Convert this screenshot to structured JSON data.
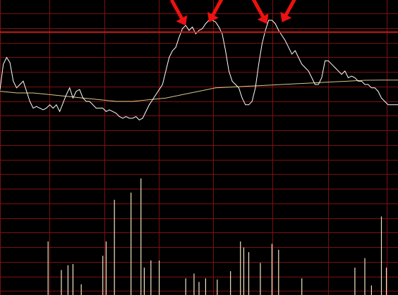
{
  "chart_data": {
    "type": "line",
    "title": "",
    "xlabel": "",
    "ylabel": "",
    "grid": true,
    "colors": {
      "background": "#000000",
      "grid": "#7a1010",
      "reference_line": "#cc1a1a",
      "price_line": "#ffffff",
      "average_line": "#d8c88a",
      "volume_bar": "#efe4c4",
      "arrow": "#ee1111"
    },
    "x_range": [
      0,
      240
    ],
    "price_ylim": [
      0,
      100
    ],
    "reference_level": 81,
    "series": [
      {
        "role": "price",
        "x": [
          0,
          2,
          4,
          6,
          8,
          10,
          12,
          14,
          16,
          18,
          20,
          22,
          24,
          26,
          28,
          30,
          32,
          34,
          36,
          38,
          40,
          42,
          44,
          46,
          48,
          50,
          52,
          54,
          56,
          58,
          60,
          62,
          64,
          66,
          68,
          70,
          72,
          74,
          76,
          78,
          80,
          82,
          84,
          86,
          88,
          90,
          92,
          94,
          96,
          98,
          100,
          102,
          104,
          106,
          108,
          110,
          112,
          114,
          116,
          118,
          120,
          122,
          124,
          126,
          128,
          130,
          132,
          134,
          136,
          138,
          140,
          142,
          144,
          146,
          148,
          150,
          152,
          154,
          156,
          158,
          160,
          162,
          164,
          166,
          168,
          170,
          172,
          174,
          176,
          178,
          180,
          182,
          184,
          186,
          188,
          190,
          192,
          194,
          196,
          198,
          200,
          202,
          204,
          206,
          208,
          210,
          212,
          214,
          216,
          218,
          220,
          222,
          224,
          226,
          228,
          230,
          232,
          234,
          236,
          238,
          240
        ],
        "values": [
          47,
          62,
          66,
          63,
          52,
          48,
          50,
          52,
          46,
          40,
          36,
          37,
          36,
          35,
          36,
          38,
          36,
          38,
          34,
          39,
          44,
          48,
          42,
          46,
          47,
          42,
          40,
          40,
          38,
          36,
          36,
          36,
          34,
          35,
          34,
          33,
          31,
          30,
          31,
          30,
          30,
          31,
          29,
          30,
          34,
          38,
          41,
          44,
          47,
          50,
          58,
          66,
          70,
          72,
          78,
          83,
          85,
          82,
          84,
          80,
          82,
          83,
          86,
          88,
          88,
          87,
          84,
          80,
          70,
          58,
          52,
          50,
          48,
          42,
          38,
          38,
          40,
          48,
          62,
          74,
          82,
          88,
          88,
          86,
          82,
          79,
          76,
          72,
          68,
          70,
          66,
          62,
          60,
          58,
          54,
          50,
          50,
          54,
          64,
          64,
          62,
          60,
          58,
          56,
          58,
          54,
          55,
          54,
          52,
          52,
          50,
          50,
          48,
          48,
          46,
          42,
          40,
          38,
          38,
          38,
          38
        ]
      },
      {
        "role": "average",
        "x": [
          0,
          10,
          20,
          30,
          40,
          50,
          60,
          70,
          80,
          90,
          100,
          110,
          120,
          130,
          140,
          150,
          160,
          170,
          180,
          190,
          200,
          210,
          220,
          230,
          240
        ],
        "values": [
          46,
          45,
          45,
          44,
          43,
          42,
          41,
          40,
          40,
          41,
          42,
          44,
          46,
          48,
          48.5,
          49,
          49.5,
          50,
          50.5,
          51,
          51.5,
          52,
          52.5,
          52.6,
          52.6
        ]
      }
    ],
    "volume": {
      "max": 100,
      "bars": [
        {
          "x": 29,
          "v": 45
        },
        {
          "x": 37,
          "v": 21
        },
        {
          "x": 41,
          "v": 25
        },
        {
          "x": 44,
          "v": 26
        },
        {
          "x": 49,
          "v": 9
        },
        {
          "x": 62,
          "v": 33
        },
        {
          "x": 64,
          "v": 45
        },
        {
          "x": 69,
          "v": 80
        },
        {
          "x": 79,
          "v": 86
        },
        {
          "x": 85,
          "v": 98
        },
        {
          "x": 87,
          "v": 23
        },
        {
          "x": 91,
          "v": 29
        },
        {
          "x": 96,
          "v": 29
        },
        {
          "x": 112,
          "v": 14
        },
        {
          "x": 117,
          "v": 18
        },
        {
          "x": 120,
          "v": 11
        },
        {
          "x": 124,
          "v": 14
        },
        {
          "x": 131,
          "v": 13
        },
        {
          "x": 139,
          "v": 20
        },
        {
          "x": 145,
          "v": 45
        },
        {
          "x": 147,
          "v": 40
        },
        {
          "x": 150,
          "v": 36
        },
        {
          "x": 157,
          "v": 27
        },
        {
          "x": 164,
          "v": 43
        },
        {
          "x": 168,
          "v": 38
        },
        {
          "x": 182,
          "v": 14
        },
        {
          "x": 214,
          "v": 23
        },
        {
          "x": 220,
          "v": 31
        },
        {
          "x": 224,
          "v": 8
        },
        {
          "x": 230,
          "v": 66
        },
        {
          "x": 233,
          "v": 23
        }
      ]
    },
    "annotations": [
      {
        "type": "arrow",
        "direction": "down-right",
        "x": 112,
        "value": 84
      },
      {
        "type": "arrow",
        "direction": "down-left",
        "x": 126,
        "value": 86
      },
      {
        "type": "arrow",
        "direction": "down-right",
        "x": 161,
        "value": 85
      },
      {
        "type": "arrow",
        "direction": "down-left",
        "x": 170,
        "value": 86
      }
    ]
  }
}
